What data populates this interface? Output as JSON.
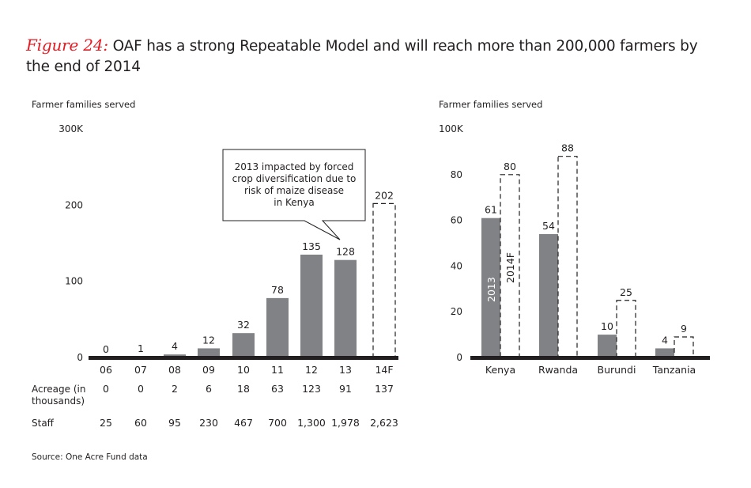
{
  "title": {
    "prefix": "Figure 24:",
    "text": "OAF has a strong Repeatable Model and will reach more than 200,000 farmers by the end of 2014"
  },
  "source": "Source: One Acre Fund data",
  "colors": {
    "bar_actual": "#818285",
    "axis": "#231f20",
    "title_prefix": "#e31b23",
    "forecast_border": "#231f20"
  },
  "chart_data": [
    {
      "type": "bar",
      "title": "",
      "ylabel": "Farmer families served",
      "xlabel": "",
      "unit_top_label": "300K",
      "ylim": [
        0,
        300
      ],
      "yticks": [
        0,
        100,
        200,
        300
      ],
      "ytick_labels": [
        "0",
        "100",
        "200",
        "300K"
      ],
      "categories": [
        "06",
        "07",
        "08",
        "09",
        "10",
        "11",
        "12",
        "13",
        "14F"
      ],
      "values": [
        0,
        1,
        4,
        12,
        32,
        78,
        135,
        128,
        202
      ],
      "forecast": [
        false,
        false,
        false,
        false,
        false,
        false,
        false,
        false,
        true
      ],
      "value_labels": [
        "0",
        "1",
        "4",
        "12",
        "32",
        "78",
        "135",
        "128",
        "202"
      ],
      "annotation": {
        "text_lines": [
          "2013 impacted by forced",
          "crop diversification due to",
          "risk of maize disease",
          "in Kenya"
        ],
        "points_to": "13"
      },
      "table_rows": [
        {
          "label_lines": [
            "Acreage (in",
            "thousands)"
          ],
          "values": [
            "0",
            "0",
            "2",
            "6",
            "18",
            "63",
            "123",
            "91",
            "137"
          ]
        },
        {
          "label_lines": [
            "Staff"
          ],
          "values": [
            "25",
            "60",
            "95",
            "230",
            "467",
            "700",
            "1,300",
            "1,978",
            "2,623"
          ]
        }
      ]
    },
    {
      "type": "bar",
      "title": "",
      "ylabel": "Farmer families served",
      "xlabel": "",
      "unit_top_label": "100K",
      "ylim": [
        0,
        100
      ],
      "yticks": [
        0,
        20,
        40,
        60,
        80,
        100
      ],
      "ytick_labels": [
        "0",
        "20",
        "40",
        "60",
        "80",
        "100K"
      ],
      "categories": [
        "Kenya",
        "Rwanda",
        "Burundi",
        "Tanzania"
      ],
      "series": [
        {
          "name": "2013",
          "style": "solid",
          "values": [
            61,
            54,
            10,
            4
          ],
          "value_labels": [
            "61",
            "54",
            "10",
            "4"
          ]
        },
        {
          "name": "2014F",
          "style": "dashed",
          "values": [
            80,
            88,
            25,
            9
          ],
          "value_labels": [
            "80",
            "88",
            "25",
            "9"
          ]
        }
      ]
    }
  ]
}
